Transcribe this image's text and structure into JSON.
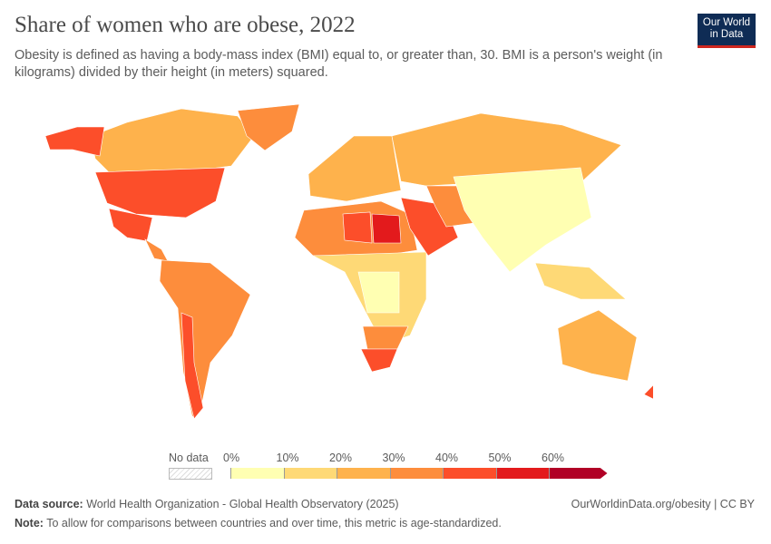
{
  "header": {
    "title": "Share of women who are obese, 2022",
    "subtitle": "Obesity is defined as having a body-mass index (BMI) equal to, or greater than, 30. BMI is a person's weight (in kilograms) divided by their height (in meters) squared.",
    "logo": "Our World in Data"
  },
  "legend": {
    "no_data": "No data",
    "ticks": [
      "0%",
      "10%",
      "20%",
      "30%",
      "40%",
      "50%",
      "60%"
    ],
    "bins": [
      {
        "range": "0-10",
        "color": "#ffffb2"
      },
      {
        "range": "10-20",
        "color": "#fed976"
      },
      {
        "range": "20-30",
        "color": "#feb24c"
      },
      {
        "range": "30-40",
        "color": "#fd8d3c"
      },
      {
        "range": "40-50",
        "color": "#fc4e2a"
      },
      {
        "range": "50-60",
        "color": "#e31a1c"
      },
      {
        "range": "60+",
        "color": "#b10026"
      }
    ]
  },
  "map_regions": [
    {
      "region": "Canada",
      "bin": "20-30"
    },
    {
      "region": "Alaska",
      "bin": "40-50"
    },
    {
      "region": "Greenland",
      "bin": "30-40"
    },
    {
      "region": "United States",
      "bin": "40-50"
    },
    {
      "region": "Mexico",
      "bin": "40-50"
    },
    {
      "region": "Central America",
      "bin": "30-40"
    },
    {
      "region": "South America",
      "bin": "30-40"
    },
    {
      "region": "Chile/Argentina",
      "bin": "40-50"
    },
    {
      "region": "Europe",
      "bin": "20-30"
    },
    {
      "region": "Russia",
      "bin": "20-30"
    },
    {
      "region": "North Africa",
      "bin": "30-40"
    },
    {
      "region": "Libya",
      "bin": "40-50"
    },
    {
      "region": "Egypt",
      "bin": "50-60"
    },
    {
      "region": "Sub-Saharan Africa",
      "bin": "10-20"
    },
    {
      "region": "Central Africa",
      "bin": "0-10"
    },
    {
      "region": "Southern Africa",
      "bin": "30-40"
    },
    {
      "region": "South Africa",
      "bin": "40-50"
    },
    {
      "region": "Middle East",
      "bin": "40-50"
    },
    {
      "region": "Central Asia & Iran",
      "bin": "30-40"
    },
    {
      "region": "China & South Asia",
      "bin": "0-10"
    },
    {
      "region": "Southeast Asia",
      "bin": "10-20"
    },
    {
      "region": "Australia",
      "bin": "20-30"
    },
    {
      "region": "New Zealand",
      "bin": "40-50"
    }
  ],
  "footer": {
    "source_label": "Data source:",
    "source": "World Health Organization - Global Health Observatory (2025)",
    "url": "OurWorldinData.org/obesity | CC BY",
    "note_label": "Note:",
    "note": "To allow for comparisons between countries and over time, this metric is age-standardized."
  }
}
